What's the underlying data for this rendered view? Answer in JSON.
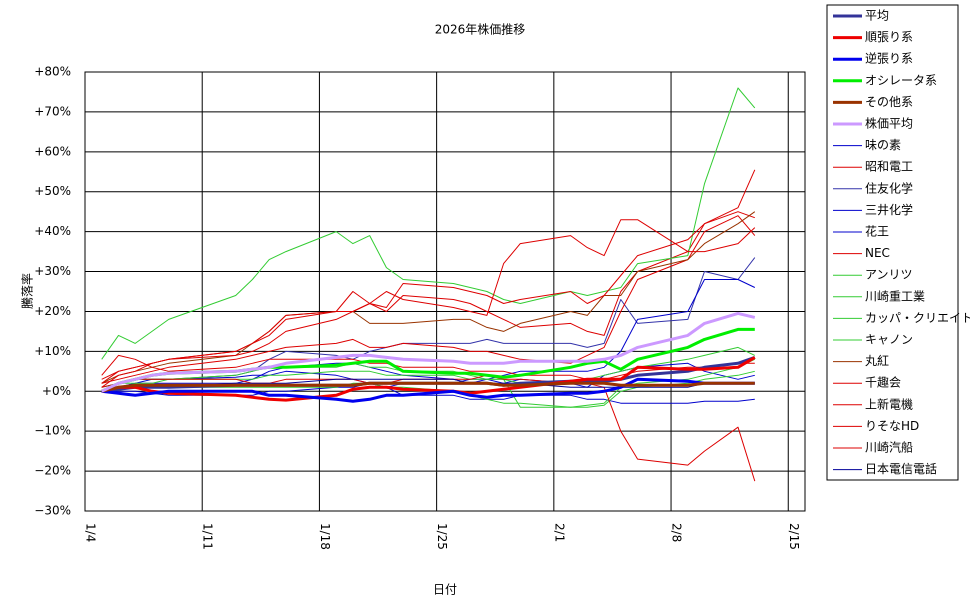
{
  "chart_data": {
    "type": "line",
    "title": "2026年株価推移",
    "xlabel": "日付",
    "ylabel": "騰落率",
    "x": [
      "1/5",
      "1/6",
      "1/7",
      "1/8",
      "1/9",
      "1/13",
      "1/14",
      "1/15",
      "1/16",
      "1/19",
      "1/20",
      "1/21",
      "1/22",
      "1/23",
      "1/26",
      "1/27",
      "1/28",
      "1/29",
      "1/30",
      "2/2",
      "2/3",
      "2/4",
      "2/5",
      "2/6",
      "2/9",
      "2/10",
      "2/12",
      "2/13"
    ],
    "xlim": [
      "1/4",
      "2/16"
    ],
    "xticks": [
      "1/4",
      "1/11",
      "1/18",
      "1/25",
      "2/1",
      "2/8",
      "2/15"
    ],
    "ylim": [
      -30,
      80
    ],
    "yticks": [
      {
        "value": -30,
        "label": "−30%"
      },
      {
        "value": -20,
        "label": "−20%"
      },
      {
        "value": -10,
        "label": "−10%"
      },
      {
        "value": 0,
        "label": "+0%"
      },
      {
        "value": 10,
        "label": "+10%"
      },
      {
        "value": 20,
        "label": "+20%"
      },
      {
        "value": 30,
        "label": "+30%"
      },
      {
        "value": 40,
        "label": "+40%"
      },
      {
        "value": 50,
        "label": "+50%"
      },
      {
        "value": 60,
        "label": "+60%"
      },
      {
        "value": 70,
        "label": "+70%"
      },
      {
        "value": 80,
        "label": "+80%"
      }
    ],
    "grid": true,
    "legend": "right",
    "series": [
      {
        "name": "平均",
        "color": "#333399",
        "width": 3,
        "values": [
          0,
          0.5,
          1,
          1,
          1,
          1.5,
          1.5,
          1.5,
          1.5,
          1.5,
          1.5,
          2,
          2,
          2,
          2,
          2,
          2,
          1.5,
          2,
          2.5,
          2.5,
          2.5,
          3,
          4,
          5,
          6,
          7,
          8.5
        ]
      },
      {
        "name": "順張り系",
        "color": "#ee0000",
        "width": 3,
        "values": [
          0,
          1,
          1,
          0,
          -0.5,
          -1,
          -1.5,
          -2,
          -2.2,
          -1,
          0.5,
          1,
          1,
          0.5,
          0,
          -0.5,
          0,
          0.5,
          1,
          2.5,
          3,
          3,
          3,
          6,
          5.5,
          5.5,
          6,
          8.5
        ]
      },
      {
        "name": "逆張り系",
        "color": "#0000ee",
        "width": 3,
        "values": [
          0,
          -0.5,
          -1,
          -0.5,
          0,
          0,
          0,
          -1,
          -1,
          -2,
          -2.5,
          -2,
          -1,
          -1,
          0,
          -1,
          -1.5,
          -1,
          -1,
          -0.5,
          -0.5,
          0,
          1,
          3,
          2.5,
          2,
          2,
          2
        ]
      },
      {
        "name": "オシレータ系",
        "color": "#00ee00",
        "width": 3,
        "values": [
          0,
          2,
          3,
          4,
          4.5,
          5,
          5.5,
          6,
          6,
          6.5,
          7,
          7.5,
          7.5,
          5,
          4.5,
          4.5,
          4,
          3.5,
          4,
          6,
          7,
          7.5,
          5.5,
          8,
          11,
          13,
          15.5,
          15.5
        ]
      },
      {
        "name": "その他系",
        "color": "#993300",
        "width": 3,
        "values": [
          0,
          1,
          1.5,
          1.5,
          1.5,
          1.5,
          1.5,
          1.5,
          1.5,
          1.5,
          1.5,
          2,
          2,
          2,
          2,
          2,
          2,
          1.5,
          1.5,
          2,
          2,
          2,
          1.5,
          1.5,
          1.5,
          2,
          2,
          2
        ]
      },
      {
        "name": "株価平均",
        "color": "#cc99ff",
        "width": 3,
        "values": [
          0,
          2,
          3,
          4,
          4.5,
          5,
          5.5,
          6,
          7,
          8.5,
          9,
          9,
          8.5,
          8,
          7.5,
          7,
          7,
          7,
          7.5,
          7.5,
          7.5,
          8,
          9,
          11,
          14,
          17,
          19.5,
          18.5
        ]
      },
      {
        "name": "味の素",
        "color": "#0000cc",
        "width": 1,
        "values": [
          0,
          1,
          2,
          3,
          3,
          3.5,
          4,
          4,
          5,
          4,
          3,
          2,
          1,
          2,
          2,
          3,
          3,
          2,
          3,
          2,
          1,
          4,
          5,
          6,
          7,
          5,
          3,
          4
        ]
      },
      {
        "name": "昭和電工",
        "color": "#dd0000",
        "width": 1,
        "values": [
          3,
          5,
          6,
          7,
          8,
          10,
          12,
          14,
          18,
          20,
          25,
          22,
          20,
          24,
          23,
          22,
          20,
          18,
          16,
          17,
          15,
          14,
          25,
          30,
          35,
          42,
          45,
          43.5
        ]
      },
      {
        "name": "住友化学",
        "color": "#3333aa",
        "width": 1,
        "values": [
          1,
          2,
          3,
          3,
          3,
          4,
          5,
          8,
          10,
          9,
          8,
          10,
          11,
          12,
          12,
          12,
          13,
          12,
          12,
          12,
          11,
          12,
          23,
          17,
          18,
          30,
          28,
          33.5
        ]
      },
      {
        "name": "三井化学",
        "color": "#0000cc",
        "width": 1,
        "values": [
          0,
          1,
          2,
          2,
          2,
          2,
          3,
          5,
          6,
          7,
          7,
          6,
          5,
          4,
          3,
          2,
          3,
          4,
          5,
          5,
          5,
          6,
          10,
          18,
          20,
          28,
          28,
          26
        ]
      },
      {
        "name": "花王",
        "color": "#0000cc",
        "width": 1,
        "values": [
          0,
          0,
          0,
          -0.5,
          -1,
          -1,
          -1,
          0,
          0,
          1,
          1,
          2,
          1,
          -1,
          -1,
          -2,
          -2,
          -2,
          -1,
          -1,
          -2,
          -2,
          -3,
          -3,
          -3,
          -2.5,
          -2.5,
          -2
        ]
      },
      {
        "name": "NEC",
        "color": "#dd0000",
        "width": 1,
        "values": [
          2,
          3,
          4,
          5,
          6,
          8,
          9,
          10,
          11,
          12,
          13,
          11,
          11,
          12,
          11,
          10,
          10,
          9,
          8,
          7,
          9,
          11,
          20,
          28,
          33,
          40,
          44,
          39
        ]
      },
      {
        "name": "アンリツ",
        "color": "#33cc33",
        "width": 1,
        "values": [
          8,
          14,
          12,
          15,
          18,
          24,
          28,
          33,
          35,
          40,
          37,
          39,
          31,
          28,
          27,
          26,
          25,
          23,
          22,
          25,
          24,
          25,
          26,
          32,
          34,
          52,
          76,
          71
        ]
      },
      {
        "name": "川崎重工業",
        "color": "#33cc33",
        "width": 1,
        "values": [
          0,
          2,
          3,
          3,
          3,
          4,
          5,
          6,
          6,
          6,
          7,
          6,
          6,
          5,
          5,
          4,
          3,
          3,
          2,
          2,
          3,
          4,
          5,
          6,
          8,
          9,
          11,
          9
        ]
      },
      {
        "name": "カッパ・クリエイト",
        "color": "#33cc33",
        "width": 1,
        "values": [
          0,
          1,
          1,
          1,
          1,
          1,
          1,
          1,
          1,
          1,
          2,
          2,
          1,
          1,
          0,
          -1,
          -2,
          -3,
          -3,
          -4,
          -4,
          -3.5,
          0,
          1,
          2,
          3,
          4,
          5
        ]
      },
      {
        "name": "キャノン",
        "color": "#33cc33",
        "width": 1,
        "values": [
          1,
          2,
          2,
          2,
          3,
          3,
          3,
          4,
          4,
          5,
          5,
          5,
          4,
          4,
          4,
          3,
          3,
          3,
          -4,
          -4,
          -3.5,
          -3,
          1,
          2,
          3,
          4,
          6,
          8
        ]
      },
      {
        "name": "丸紅",
        "color": "#993300",
        "width": 1,
        "values": [
          2,
          4,
          5,
          6,
          7,
          9,
          12,
          15,
          19,
          20,
          20,
          17,
          17,
          17,
          18,
          18,
          16,
          15,
          17,
          20,
          19,
          24,
          24,
          30,
          33,
          37,
          42,
          45
        ]
      },
      {
        "name": "千趣会",
        "color": "#dd0000",
        "width": 1,
        "values": [
          4,
          9,
          8,
          6,
          5,
          6,
          7,
          8,
          8,
          8,
          8,
          7,
          7,
          6,
          6,
          5,
          5,
          5,
          4,
          4,
          3,
          3,
          4,
          5,
          6,
          6,
          7,
          7
        ]
      },
      {
        "name": "上新電機",
        "color": "#dd0000",
        "width": 1,
        "values": [
          1,
          4,
          5,
          7,
          8,
          10,
          12,
          15,
          19,
          20,
          20,
          22,
          21,
          27,
          26,
          25,
          24,
          22,
          23,
          25,
          22,
          24,
          29,
          34,
          38,
          42,
          46,
          55.5
        ]
      },
      {
        "name": "りそなHD",
        "color": "#dd0000",
        "width": 1,
        "values": [
          1,
          2,
          3,
          3,
          3,
          3,
          2,
          2,
          3,
          3,
          3,
          2,
          2,
          3,
          3,
          3,
          4,
          3,
          3,
          2,
          2,
          1,
          -10,
          -17,
          -18.5,
          -15,
          -9,
          -22.5
        ]
      },
      {
        "name": "川崎汽船",
        "color": "#dd0000",
        "width": 1,
        "values": [
          2,
          5,
          6,
          7,
          8,
          9,
          10,
          12,
          15,
          18,
          20,
          22,
          25,
          23,
          21,
          20,
          19,
          32,
          37,
          39,
          36,
          34,
          43,
          43,
          35,
          35,
          37,
          41
        ]
      },
      {
        "name": "日本電信電話",
        "color": "#000099",
        "width": 1,
        "values": [
          0,
          1,
          1,
          1,
          1,
          2,
          2,
          2,
          2,
          3,
          3,
          3,
          3,
          3,
          3,
          2,
          2,
          2,
          2,
          1,
          1,
          1,
          1,
          1,
          1,
          2,
          2,
          2
        ]
      }
    ]
  }
}
